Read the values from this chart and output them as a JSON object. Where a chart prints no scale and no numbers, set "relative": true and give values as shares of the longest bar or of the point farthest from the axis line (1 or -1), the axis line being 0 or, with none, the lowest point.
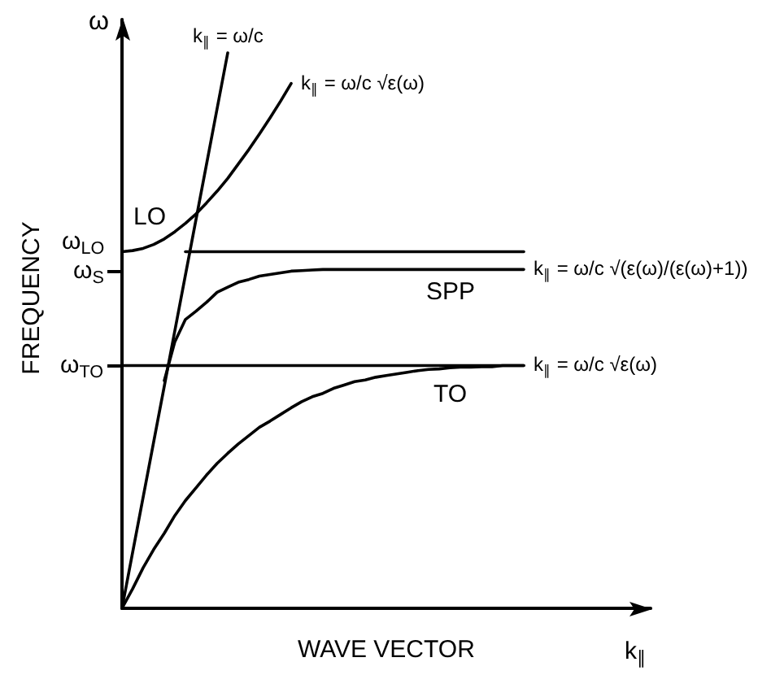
{
  "chart_data": {
    "type": "line",
    "ylabel": "FREQUENCY",
    "xlabel": "WAVE VECTOR",
    "relative": true,
    "marker": "none",
    "categories": [
      null,
      null,
      null,
      null,
      null,
      null,
      null,
      null,
      null,
      null,
      null,
      null,
      null,
      null,
      null,
      null,
      null,
      null,
      null,
      null,
      null,
      null,
      null,
      null,
      null,
      null,
      null,
      null,
      null,
      null,
      null,
      null,
      null,
      null,
      null,
      null,
      null,
      null,
      null,
      null,
      null,
      null,
      null,
      null,
      null,
      null,
      null,
      null,
      null,
      null,
      null
    ],
    "series": [
      {
        "name": "k$_{∥}$ = ω/c",
        "color": "#000000",
        "values": [
          0,
          0.1,
          0.2,
          0.3,
          0.4,
          0.5,
          0.6,
          0.7,
          0.8,
          0.9,
          1,
          null,
          null,
          null,
          null,
          null,
          null,
          null,
          null,
          null,
          null,
          null,
          null,
          null,
          null,
          null,
          null,
          null,
          null,
          null,
          null,
          null,
          null,
          null,
          null,
          null,
          null,
          null,
          null,
          null,
          null,
          null,
          null,
          null,
          null,
          null,
          null,
          null,
          null,
          null,
          null
        ]
      },
      {
        "name": "k$_{∥}$ = ω/c √ε(ω)",
        "color": "#000000",
        "values": [
          0.642,
          0.644,
          0.648,
          0.655,
          0.665,
          0.678,
          0.693,
          0.71,
          0.73,
          0.751,
          0.774,
          0.8,
          0.826,
          0.854,
          0.883,
          0.913,
          0.945,
          null,
          null,
          null,
          null,
          null,
          null,
          null,
          null,
          null,
          null,
          null,
          null,
          null,
          null,
          null,
          null,
          null,
          null,
          null,
          null,
          null,
          null,
          null,
          null,
          null,
          null,
          null,
          null,
          null,
          null,
          null,
          null,
          null,
          null
        ]
      },
      {
        "color": "#000000",
        "values": [
          null,
          null,
          null,
          null,
          null,
          null,
          0.642,
          0.642,
          0.642,
          0.642,
          0.642,
          0.642,
          0.642,
          0.642,
          0.642,
          0.642,
          0.642,
          0.642,
          0.642,
          0.642,
          0.642,
          0.642,
          0.642,
          0.642,
          0.642,
          0.642,
          0.642,
          0.642,
          0.642,
          0.642,
          0.642,
          0.642,
          0.642,
          0.642,
          0.642,
          0.642,
          0.642,
          0.642,
          0.642,
          null,
          null,
          null,
          null,
          null,
          null,
          null,
          null,
          null,
          null,
          null,
          null
        ]
      },
      {
        "name": "k$_{∥}$ = ω/c √(ε(ω)/(ε(ω)+1))",
        "color": "#000000",
        "values": [
          null,
          null,
          null,
          null,
          0.41,
          0.48,
          0.52,
          0.535,
          0.551,
          0.569,
          0.578,
          0.587,
          0.592,
          0.598,
          0.601,
          0.604,
          0.607,
          0.608,
          0.609,
          0.61,
          0.61,
          0.61,
          0.61,
          0.61,
          0.61,
          0.61,
          0.61,
          0.61,
          0.61,
          0.61,
          0.61,
          0.61,
          0.61,
          0.61,
          0.61,
          0.61,
          0.61,
          0.61,
          0.61,
          null,
          null,
          null,
          null,
          null,
          null,
          null,
          null,
          null,
          null,
          null,
          null
        ]
      },
      {
        "color": "#000000",
        "values": [
          0.437,
          0.437,
          0.437,
          0.437,
          0.437,
          0.437,
          0.437,
          0.437,
          0.437,
          0.437,
          0.437,
          0.437,
          0.437,
          0.437,
          0.437,
          0.437,
          0.437,
          0.437,
          0.437,
          0.437,
          0.437,
          0.437,
          0.437,
          0.437,
          0.437,
          0.437,
          0.437,
          0.437,
          0.437,
          0.437,
          0.437,
          0.437,
          0.437,
          0.437,
          0.437,
          0.437,
          0.437,
          0.437,
          0.437,
          null,
          null,
          null,
          null,
          null,
          null,
          null,
          null,
          null,
          null,
          null,
          null
        ]
      },
      {
        "name": "k$_{∥}$ = ω/c √ε(ω)",
        "color": "#000000",
        "values": [
          0,
          0.035,
          0.073,
          0.106,
          0.135,
          0.167,
          0.194,
          0.217,
          0.24,
          0.261,
          0.279,
          0.296,
          0.311,
          0.326,
          0.337,
          0.349,
          0.361,
          0.372,
          0.381,
          0.387,
          0.396,
          0.402,
          0.408,
          0.411,
          0.416,
          0.419,
          0.422,
          0.425,
          0.428,
          0.43,
          0.431,
          0.433,
          0.434,
          0.434,
          0.435,
          0.435,
          0.437,
          0.437,
          0.437,
          null,
          null,
          null,
          null,
          null,
          null,
          null,
          null,
          null,
          null,
          null,
          null
        ]
      }
    ],
    "annotations": [
      "ω",
      "k$_{∥}$",
      "LO",
      "SPP",
      "TO",
      "ω$_{LO}$",
      "ω$_{S}$",
      "ω$_{TO}$"
    ]
  }
}
